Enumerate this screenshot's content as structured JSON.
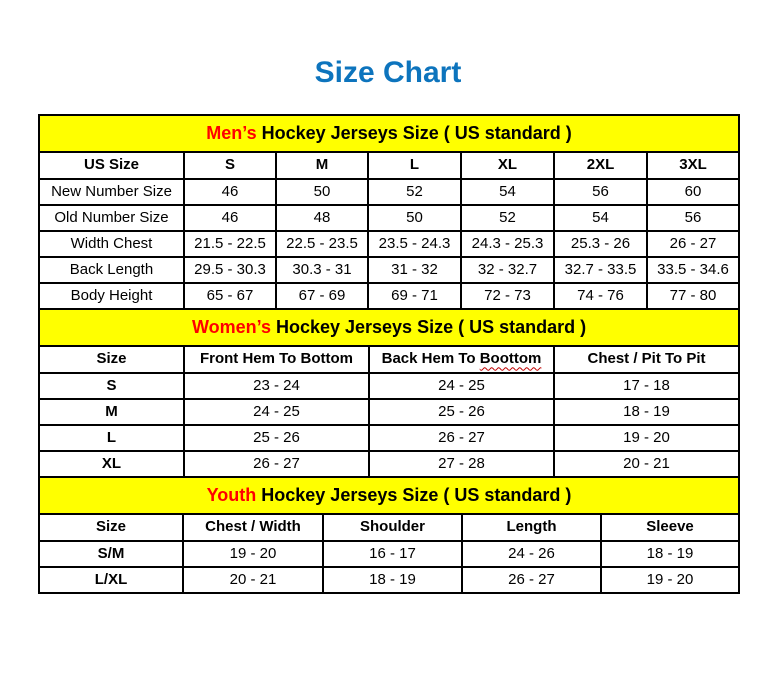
{
  "page_title": "Size Chart",
  "colors": {
    "title_blue": "#0D74BD",
    "banner_yellow": "#FFFF00",
    "highlight_red": "#FF0000",
    "spellcheck_red": "#C00000",
    "border_black": "#000000"
  },
  "sections": [
    {
      "id": "mens",
      "banner": {
        "highlight": "Men’s",
        "rest": " Hockey Jerseys Size ( US standard )"
      },
      "columns": [
        "US Size",
        "S",
        "M",
        "L",
        "XL",
        "2XL",
        "3XL"
      ],
      "rows": [
        {
          "label": "New Number Size",
          "values": [
            "46",
            "50",
            "52",
            "54",
            "56",
            "60"
          ]
        },
        {
          "label": "Old Number Size",
          "values": [
            "46",
            "48",
            "50",
            "52",
            "54",
            "56"
          ]
        },
        {
          "label": "Width Chest",
          "values": [
            "21.5 - 22.5",
            "22.5 - 23.5",
            "23.5 - 24.3",
            "24.3 - 25.3",
            "25.3 - 26",
            "26 - 27"
          ]
        },
        {
          "label": "Back Length",
          "values": [
            "29.5 - 30.3",
            "30.3 - 31",
            "31 - 32",
            "32 - 32.7",
            "32.7 - 33.5",
            "33.5 - 34.6"
          ]
        },
        {
          "label": "Body Height",
          "values": [
            "65 - 67",
            "67 - 69",
            "69 - 71",
            "72 - 73",
            "74 - 76",
            "77 - 80"
          ]
        }
      ]
    },
    {
      "id": "womens",
      "banner": {
        "highlight": "Women’s",
        "rest": " Hockey Jerseys Size ( US standard )"
      },
      "columns": [
        "Size",
        "Front Hem To Bottom",
        "Back Hem To Boottom",
        "Chest / Pit To Pit"
      ],
      "spellcheck_underline": {
        "column_index": 2,
        "prefix": "Back Hem To ",
        "word": "Boottom",
        "color": "#C00000"
      },
      "rows": [
        {
          "label": "S",
          "values": [
            "23 - 24",
            "24 - 25",
            "17 - 18"
          ]
        },
        {
          "label": "M",
          "values": [
            "24 - 25",
            "25 - 26",
            "18 - 19"
          ]
        },
        {
          "label": "L",
          "values": [
            "25 - 26",
            "26 - 27",
            "19 - 20"
          ]
        },
        {
          "label": "XL",
          "values": [
            "26 - 27",
            "27 - 28",
            "20 - 21"
          ]
        }
      ]
    },
    {
      "id": "youth",
      "banner": {
        "highlight": "Youth",
        "rest": " Hockey Jerseys Size ( US standard )"
      },
      "columns": [
        "Size",
        "Chest / Width",
        "Shoulder",
        "Length",
        "Sleeve"
      ],
      "rows": [
        {
          "label": "S/M",
          "values": [
            "19 - 20",
            "16 - 17",
            "24 - 26",
            "18 - 19"
          ]
        },
        {
          "label": "L/XL",
          "values": [
            "20 - 21",
            "18 - 19",
            "26 - 27",
            "19 - 20"
          ]
        }
      ]
    }
  ]
}
